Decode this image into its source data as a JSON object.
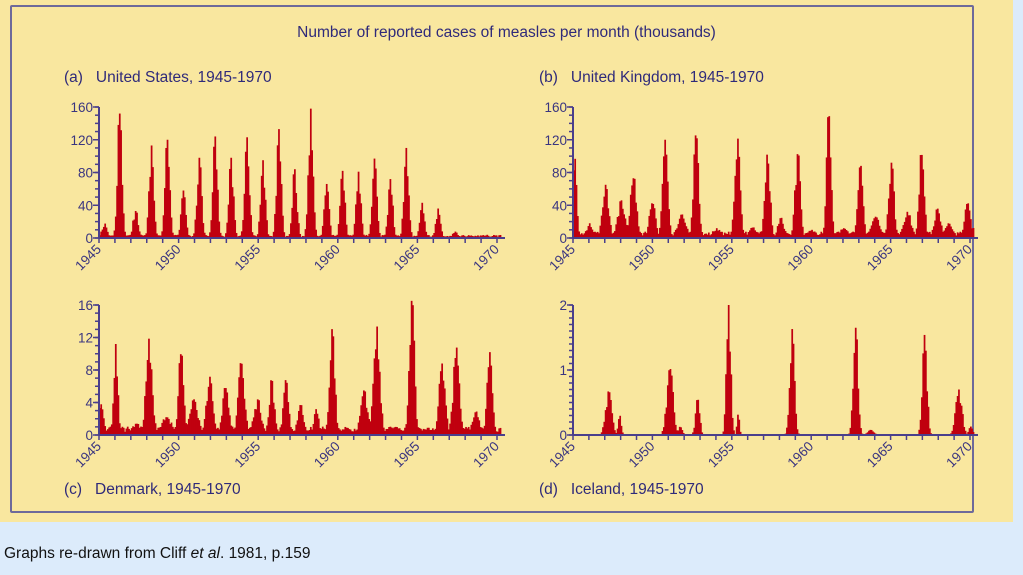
{
  "figure_title": "Number of reported cases of measles per month (thousands)",
  "caption": {
    "prefix": "Graphs re-drawn from Cliff ",
    "italic": "et al",
    "suffix": ". 1981, p.159"
  },
  "colors": {
    "bars": "#c0000f",
    "axis": "#4a3f8c",
    "text": "#2f2a7a",
    "panel_bg": "#f9e79f",
    "page_bg": "#dcebfb"
  },
  "chart_data": [
    {
      "id": "a",
      "type": "bar",
      "label_prefix": "(a)",
      "title": "United States, 1945-1970",
      "xlabel": "",
      "ylabel": "cases per month (thousands)",
      "xlim": [
        1945,
        1970
      ],
      "ylim": [
        0,
        160
      ],
      "yticks": [
        0,
        40,
        80,
        120,
        160
      ],
      "yminor_step": 10,
      "xticks": [
        1945,
        1950,
        1955,
        1960,
        1965,
        1970
      ],
      "xminor_step": 1,
      "baseline": 3,
      "epidemics": [
        {
          "t": 1945.3,
          "peak": 18,
          "width": 0.25
        },
        {
          "t": 1946.25,
          "peak": 152,
          "width": 0.22
        },
        {
          "t": 1947.25,
          "peak": 33,
          "width": 0.25
        },
        {
          "t": 1948.25,
          "peak": 113,
          "width": 0.22
        },
        {
          "t": 1949.25,
          "peak": 120,
          "width": 0.22
        },
        {
          "t": 1950.25,
          "peak": 58,
          "width": 0.22
        },
        {
          "t": 1951.25,
          "peak": 98,
          "width": 0.22
        },
        {
          "t": 1952.25,
          "peak": 124,
          "width": 0.22
        },
        {
          "t": 1953.25,
          "peak": 98,
          "width": 0.22
        },
        {
          "t": 1954.25,
          "peak": 123,
          "width": 0.22
        },
        {
          "t": 1955.25,
          "peak": 95,
          "width": 0.22
        },
        {
          "t": 1956.25,
          "peak": 133,
          "width": 0.22
        },
        {
          "t": 1957.25,
          "peak": 84,
          "width": 0.22
        },
        {
          "t": 1958.25,
          "peak": 158,
          "width": 0.22
        },
        {
          "t": 1959.25,
          "peak": 66,
          "width": 0.22
        },
        {
          "t": 1960.25,
          "peak": 82,
          "width": 0.22
        },
        {
          "t": 1961.25,
          "peak": 81,
          "width": 0.22
        },
        {
          "t": 1962.25,
          "peak": 97,
          "width": 0.22
        },
        {
          "t": 1963.25,
          "peak": 72,
          "width": 0.22
        },
        {
          "t": 1964.25,
          "peak": 110,
          "width": 0.22
        },
        {
          "t": 1965.25,
          "peak": 43,
          "width": 0.22
        },
        {
          "t": 1966.25,
          "peak": 36,
          "width": 0.22
        },
        {
          "t": 1967.3,
          "peak": 8,
          "width": 0.25
        },
        {
          "t": 1968.3,
          "peak": 3,
          "width": 0.25
        },
        {
          "t": 1969.3,
          "peak": 4,
          "width": 0.25
        },
        {
          "t": 1970.3,
          "peak": 6,
          "width": 0.25
        }
      ]
    },
    {
      "id": "b",
      "type": "bar",
      "label_prefix": "(b)",
      "title": "United Kingdom, 1945-1970",
      "xlabel": "",
      "ylabel": "cases per month (thousands)",
      "xlim": [
        1945,
        1970
      ],
      "ylim": [
        0,
        160
      ],
      "yticks": [
        0,
        40,
        80,
        120,
        160
      ],
      "yminor_step": 10,
      "xticks": [
        1945,
        1950,
        1955,
        1960,
        1965,
        1970
      ],
      "xminor_step": 1,
      "baseline": 6,
      "epidemics": [
        {
          "t": 1945.05,
          "peak": 100,
          "width": 0.2
        },
        {
          "t": 1946.0,
          "peak": 18,
          "width": 0.3
        },
        {
          "t": 1947.0,
          "peak": 65,
          "width": 0.3
        },
        {
          "t": 1948.0,
          "peak": 46,
          "width": 0.35
        },
        {
          "t": 1948.75,
          "peak": 73,
          "width": 0.3
        },
        {
          "t": 1949.95,
          "peak": 43,
          "width": 0.3
        },
        {
          "t": 1950.75,
          "peak": 120,
          "width": 0.25
        },
        {
          "t": 1951.8,
          "peak": 29,
          "width": 0.4
        },
        {
          "t": 1952.7,
          "peak": 128,
          "width": 0.25
        },
        {
          "t": 1954.0,
          "peak": 12,
          "width": 0.4
        },
        {
          "t": 1955.3,
          "peak": 124,
          "width": 0.25
        },
        {
          "t": 1956.3,
          "peak": 13,
          "width": 0.4
        },
        {
          "t": 1957.2,
          "peak": 104,
          "width": 0.25
        },
        {
          "t": 1958.05,
          "peak": 25,
          "width": 0.3
        },
        {
          "t": 1959.1,
          "peak": 103,
          "width": 0.25
        },
        {
          "t": 1960.0,
          "peak": 10,
          "width": 0.4
        },
        {
          "t": 1961.05,
          "peak": 153,
          "width": 0.22
        },
        {
          "t": 1962.0,
          "peak": 12,
          "width": 0.4
        },
        {
          "t": 1963.05,
          "peak": 90,
          "width": 0.25
        },
        {
          "t": 1964.0,
          "peak": 26,
          "width": 0.4
        },
        {
          "t": 1965.0,
          "peak": 92,
          "width": 0.25
        },
        {
          "t": 1966.0,
          "peak": 32,
          "width": 0.4
        },
        {
          "t": 1966.9,
          "peak": 102,
          "width": 0.25
        },
        {
          "t": 1967.9,
          "peak": 36,
          "width": 0.3
        },
        {
          "t": 1968.6,
          "peak": 18,
          "width": 0.4
        },
        {
          "t": 1969.8,
          "peak": 43,
          "width": 0.3
        },
        {
          "t": 1970.2,
          "peak": 17,
          "width": 0.15
        }
      ]
    },
    {
      "id": "c",
      "type": "bar",
      "label_prefix": "(c)",
      "title": "Denmark, 1945-1970",
      "xlabel": "",
      "ylabel": "cases per month (thousands)",
      "xlim": [
        1945,
        1970
      ],
      "ylim": [
        0,
        16
      ],
      "yticks": [
        0,
        4,
        8,
        12,
        16
      ],
      "yminor_step": 1,
      "xticks": [
        1945,
        1950,
        1955,
        1960,
        1965,
        1970
      ],
      "xminor_step": 1,
      "baseline": 0.8,
      "epidemics": [
        {
          "t": 1945.1,
          "peak": 3.8,
          "width": 0.25
        },
        {
          "t": 1946.0,
          "peak": 11.2,
          "width": 0.2
        },
        {
          "t": 1947.3,
          "peak": 1.4,
          "width": 0.5
        },
        {
          "t": 1948.1,
          "peak": 11.9,
          "width": 0.3
        },
        {
          "t": 1949.2,
          "peak": 2.2,
          "width": 0.5
        },
        {
          "t": 1950.1,
          "peak": 10.0,
          "width": 0.25
        },
        {
          "t": 1950.9,
          "peak": 4.4,
          "width": 0.4
        },
        {
          "t": 1951.9,
          "peak": 7.2,
          "width": 0.3
        },
        {
          "t": 1952.9,
          "peak": 5.8,
          "width": 0.3
        },
        {
          "t": 1953.9,
          "peak": 8.8,
          "width": 0.3
        },
        {
          "t": 1954.9,
          "peak": 4.4,
          "width": 0.35
        },
        {
          "t": 1955.8,
          "peak": 6.8,
          "width": 0.25
        },
        {
          "t": 1956.7,
          "peak": 6.9,
          "width": 0.25
        },
        {
          "t": 1957.6,
          "peak": 3.7,
          "width": 0.3
        },
        {
          "t": 1958.6,
          "peak": 3.2,
          "width": 0.25
        },
        {
          "t": 1959.6,
          "peak": 13.1,
          "width": 0.25
        },
        {
          "t": 1960.5,
          "peak": 0.9,
          "width": 0.5
        },
        {
          "t": 1961.6,
          "peak": 5.5,
          "width": 0.35
        },
        {
          "t": 1962.4,
          "peak": 13.4,
          "width": 0.3
        },
        {
          "t": 1963.6,
          "peak": 1.0,
          "width": 0.5
        },
        {
          "t": 1964.6,
          "peak": 16.6,
          "width": 0.25
        },
        {
          "t": 1965.6,
          "peak": 0.8,
          "width": 0.5
        },
        {
          "t": 1966.5,
          "peak": 8.8,
          "width": 0.3
        },
        {
          "t": 1967.4,
          "peak": 10.8,
          "width": 0.3
        },
        {
          "t": 1968.6,
          "peak": 2.8,
          "width": 0.35
        },
        {
          "t": 1969.5,
          "peak": 10.2,
          "width": 0.25
        }
      ]
    },
    {
      "id": "d",
      "type": "bar",
      "label_prefix": "(d)",
      "title": "Iceland, 1945-1970",
      "xlabel": "",
      "ylabel": "cases per month (thousands)",
      "xlim": [
        1945,
        1970
      ],
      "ylim": [
        0,
        2
      ],
      "yticks": [
        0,
        1,
        2
      ],
      "yminor_step": 0.1,
      "xticks": [
        1945,
        1950,
        1955,
        1960,
        1965,
        1970
      ],
      "xminor_step": 1,
      "baseline": 0,
      "epidemics": [
        {
          "t": 1947.2,
          "peak": 0.68,
          "width": 0.3
        },
        {
          "t": 1947.9,
          "peak": 0.3,
          "width": 0.15
        },
        {
          "t": 1951.05,
          "peak": 1.03,
          "width": 0.3
        },
        {
          "t": 1951.7,
          "peak": 0.13,
          "width": 0.2
        },
        {
          "t": 1952.8,
          "peak": 0.56,
          "width": 0.2
        },
        {
          "t": 1954.75,
          "peak": 2.0,
          "width": 0.2
        },
        {
          "t": 1955.35,
          "peak": 0.32,
          "width": 0.12
        },
        {
          "t": 1958.75,
          "peak": 1.63,
          "width": 0.22
        },
        {
          "t": 1962.75,
          "peak": 1.65,
          "width": 0.22
        },
        {
          "t": 1963.7,
          "peak": 0.08,
          "width": 0.3
        },
        {
          "t": 1967.1,
          "peak": 1.55,
          "width": 0.22
        },
        {
          "t": 1969.25,
          "peak": 0.7,
          "width": 0.3
        },
        {
          "t": 1970.0,
          "peak": 0.13,
          "width": 0.2
        }
      ]
    }
  ]
}
